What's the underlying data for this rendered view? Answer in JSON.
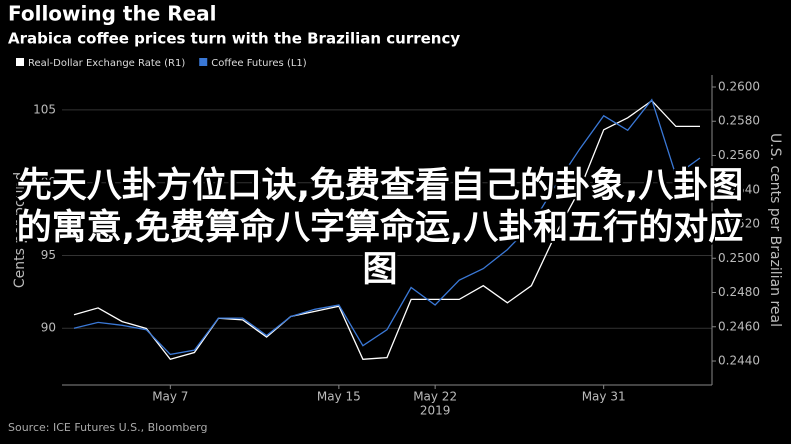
{
  "chart_data": {
    "type": "line",
    "title": "Following the Real",
    "subtitle": "Arabica coffee prices turn with the Brazilian currency",
    "source": "Source: ICE Futures U.S., Bloomberg",
    "overlay_text": "先天八卦方位口诀,免费查看自己的卦象,八卦图的寓意,免费算命八字算命运,八卦和五行的对应图",
    "x_label": "2019",
    "y_label": "Cents per pound",
    "y2_label": "U.S. cents per Brazilian real",
    "categories": [
      null,
      null,
      null,
      null,
      "May 7",
      null,
      null,
      null,
      null,
      null,
      null,
      "May 15",
      null,
      null,
      null,
      "May 22",
      null,
      null,
      null,
      null,
      null,
      null,
      "May 31",
      null,
      null,
      null,
      null
    ],
    "ylim": [
      86.1,
      107.4
    ],
    "yticks": [
      90,
      95,
      100,
      105
    ],
    "y2lim": [
      0.2426,
      0.2607
    ],
    "y2ticks": [
      {
        "value": 0.244,
        "label": "0.2440"
      },
      {
        "value": 0.246,
        "label": "0.2460"
      },
      {
        "value": 0.248,
        "label": "0.2480"
      },
      {
        "value": 0.25,
        "label": "0.2500"
      },
      {
        "value": 0.252,
        "label": "0.2520"
      },
      {
        "value": 0.254,
        "label": "0.2540"
      },
      {
        "value": 0.256,
        "label": "0.2560"
      },
      {
        "value": 0.258,
        "label": "0.2580"
      },
      {
        "value": 0.26,
        "label": "0.2600"
      }
    ],
    "grid": true,
    "series": [
      {
        "name": "Real-Dollar Exchange Rate (R1)",
        "color": "#ffffff",
        "axis": "y2",
        "values": [
          0.2467,
          0.2471,
          0.2463,
          0.2459,
          0.2441,
          0.2445,
          0.2465,
          0.2464,
          0.2454,
          0.2466,
          0.2469,
          0.2472,
          0.2441,
          0.2442,
          0.2476,
          0.2476,
          0.2476,
          0.2484,
          0.2474,
          0.2484,
          0.2514,
          0.254,
          0.2575,
          0.2582,
          0.2592,
          0.2577,
          0.2577
        ]
      },
      {
        "name": "Coffee Futures (L1)",
        "color": "#3a78d6",
        "axis": "y",
        "values": [
          90.0,
          90.4,
          90.2,
          89.9,
          88.2,
          88.5,
          90.7,
          90.7,
          89.5,
          90.8,
          91.3,
          91.6,
          88.8,
          89.9,
          92.8,
          91.6,
          93.3,
          94.1,
          95.4,
          97.1,
          99.8,
          102.3,
          104.6,
          103.6,
          105.7,
          100.5,
          101.7
        ]
      }
    ]
  }
}
